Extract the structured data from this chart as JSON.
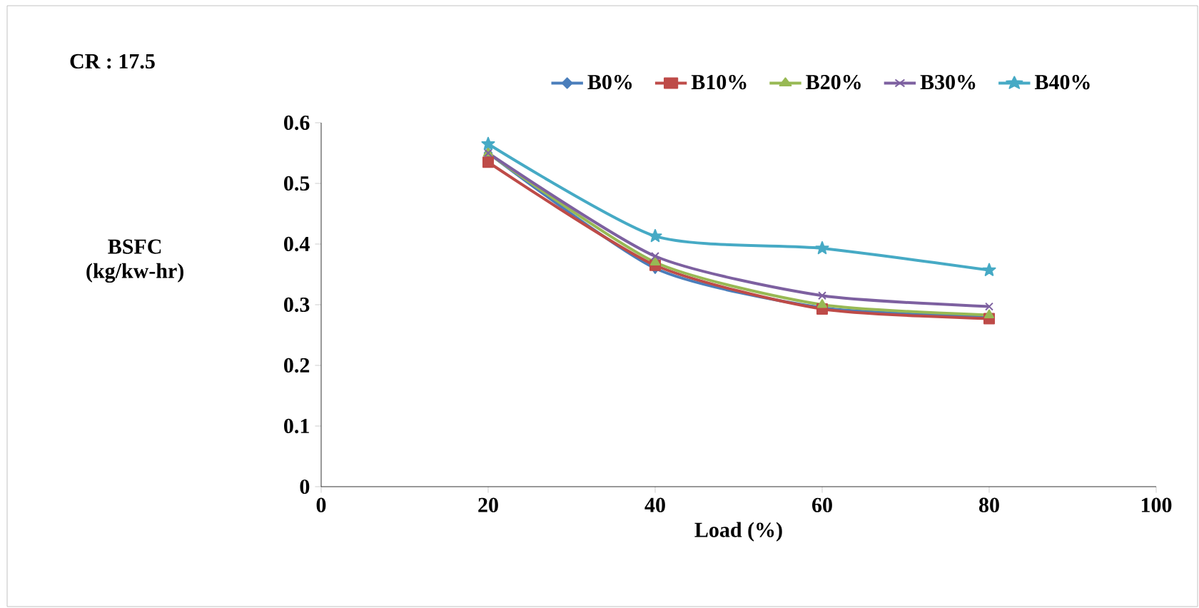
{
  "chart_data": {
    "type": "line",
    "title": "CR : 17.5",
    "xlabel": "Load (%)",
    "ylabel": "BSFC (kg/kw-hr)",
    "x": [
      20,
      40,
      60,
      80
    ],
    "xlim": [
      0,
      100
    ],
    "xticks": [
      0,
      20,
      40,
      60,
      80,
      100
    ],
    "ylim": [
      0,
      0.6
    ],
    "yticks": [
      0,
      0.1,
      0.2,
      0.3,
      0.4,
      0.5,
      0.6
    ],
    "legend": "top",
    "grid": false,
    "series": [
      {
        "name": "B0%",
        "color": "#4a7ebb",
        "marker": "diamond",
        "values": [
          0.55,
          0.36,
          0.295,
          0.28
        ]
      },
      {
        "name": "B10%",
        "color": "#be4b48",
        "marker": "square",
        "values": [
          0.535,
          0.365,
          0.293,
          0.277
        ]
      },
      {
        "name": "B20%",
        "color": "#98b954",
        "marker": "triangle",
        "values": [
          0.55,
          0.37,
          0.3,
          0.283
        ]
      },
      {
        "name": "B30%",
        "color": "#7d60a0",
        "marker": "cross",
        "values": [
          0.55,
          0.38,
          0.315,
          0.297
        ]
      },
      {
        "name": "B40%",
        "color": "#46aac5",
        "marker": "star",
        "values": [
          0.565,
          0.413,
          0.393,
          0.357
        ]
      }
    ]
  }
}
